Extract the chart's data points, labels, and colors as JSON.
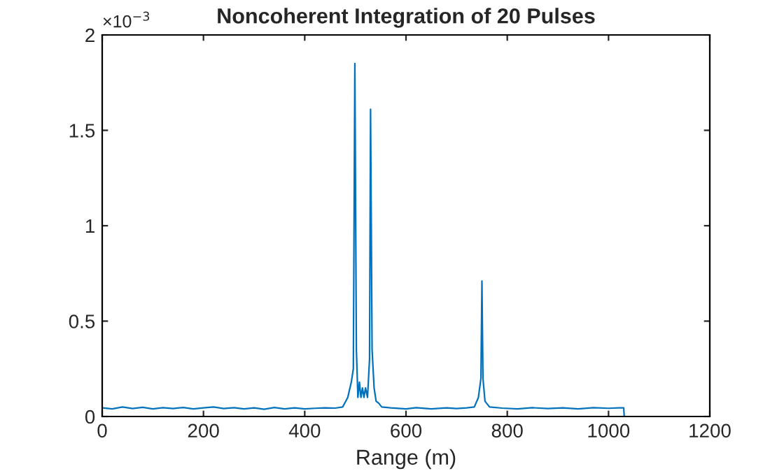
{
  "chart_data": {
    "type": "line",
    "title": "Noncoherent Integration of 20 Pulses",
    "xlabel": "Range (m)",
    "annotations": [
      "×10$^{−3}$"
    ],
    "xlim": [
      0,
      1200
    ],
    "xticks": [
      0,
      200,
      400,
      600,
      800,
      1000,
      1200
    ],
    "ylim": [
      0,
      2
    ],
    "yticks": [
      0,
      0.5,
      1,
      1.5,
      2
    ],
    "grid": false,
    "legend": false,
    "series": [
      {
        "color": "#0072bd",
        "x": [
          0,
          20,
          40,
          60,
          80,
          100,
          120,
          140,
          160,
          180,
          200,
          220,
          240,
          260,
          280,
          300,
          320,
          340,
          360,
          380,
          400,
          420,
          440,
          460,
          475,
          485,
          492,
          496,
          499,
          502,
          505,
          508,
          511,
          514,
          517,
          520,
          524,
          528,
          530,
          533,
          537,
          541,
          546,
          552,
          570,
          600,
          620,
          650,
          680,
          700,
          720,
          735,
          743,
          748,
          750,
          752,
          756,
          765,
          790,
          820,
          850,
          880,
          910,
          940,
          970,
          1000,
          1020,
          1030,
          1031,
          1040
        ],
        "values": [
          0.045,
          0.04,
          0.05,
          0.042,
          0.048,
          0.04,
          0.046,
          0.042,
          0.047,
          0.04,
          0.045,
          0.05,
          0.042,
          0.046,
          0.04,
          0.045,
          0.038,
          0.047,
          0.04,
          0.045,
          0.04,
          0.043,
          0.045,
          0.044,
          0.05,
          0.1,
          0.18,
          0.25,
          1.85,
          0.35,
          0.1,
          0.18,
          0.1,
          0.15,
          0.1,
          0.15,
          0.1,
          0.3,
          1.61,
          0.35,
          0.15,
          0.08,
          0.07,
          0.05,
          0.045,
          0.04,
          0.046,
          0.04,
          0.045,
          0.042,
          0.045,
          0.05,
          0.1,
          0.2,
          0.71,
          0.2,
          0.08,
          0.05,
          0.044,
          0.04,
          0.046,
          0.042,
          0.045,
          0.04,
          0.046,
          0.043,
          0.045,
          0.045,
          0,
          0
        ]
      }
    ]
  }
}
